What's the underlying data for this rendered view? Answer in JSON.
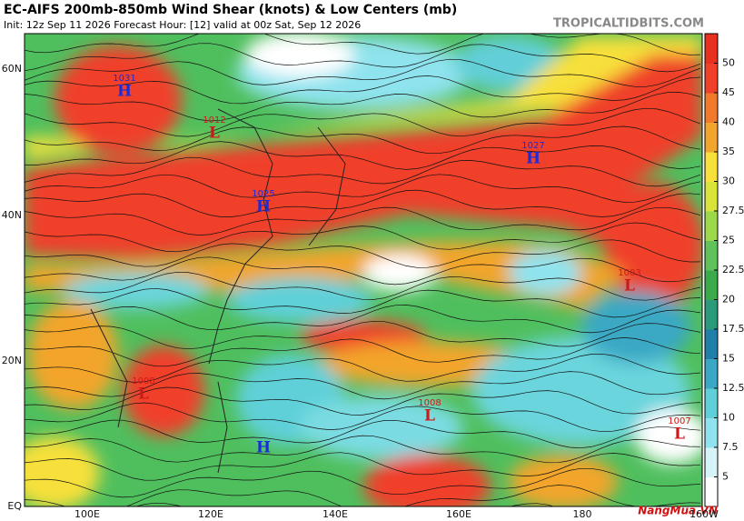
{
  "header": {
    "title": "EC-AIFS 200mb-850mb Wind Shear (knots) & Low Centers (mb)",
    "subtitle": "Init: 12z Sep 11 2026   Forecast Hour: [12]   valid at 00z Sat, Sep 12 2026",
    "site": "TROPICALTIDBITS.COM"
  },
  "colorbar": {
    "ticks": [
      5,
      7.5,
      10,
      12.5,
      15,
      17.5,
      20,
      22.5,
      25,
      27.5,
      30,
      35,
      40,
      45,
      50
    ]
  },
  "axes": {
    "lat_labels": [
      "60N",
      "40N",
      "20N",
      "EQ"
    ],
    "lon_labels": [
      "100E",
      "120E",
      "140E",
      "160E",
      "180",
      "160W"
    ]
  },
  "centers": [
    {
      "symbol": "H",
      "pressure": 1031
    },
    {
      "symbol": "L",
      "pressure": 1012
    },
    {
      "symbol": "H",
      "pressure": 1025
    },
    {
      "symbol": "H",
      "pressure": 1027
    },
    {
      "symbol": "L",
      "pressure": 1003
    },
    {
      "symbol": "L",
      "pressure": 1008
    },
    {
      "symbol": "L",
      "pressure": 1008
    },
    {
      "symbol": "L",
      "pressure": 1007
    },
    {
      "symbol": "H"
    }
  ],
  "watermark": "NangMua.VN"
}
